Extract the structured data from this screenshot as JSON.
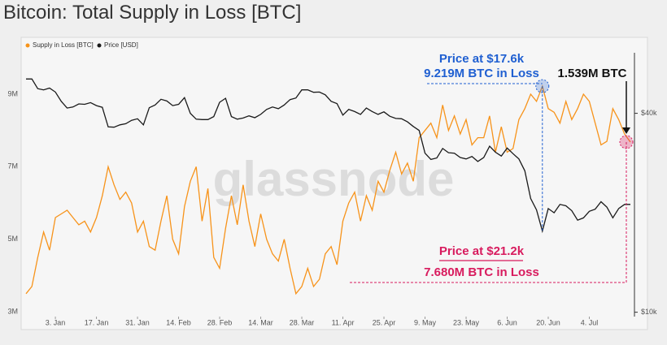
{
  "chart_data": {
    "type": "line",
    "title": "Bitcoin: Total Supply in Loss [BTC]",
    "watermark": "glassnode",
    "legend": "top-left",
    "categories": [
      null,
      null,
      null,
      null,
      null,
      "3. Jan",
      null,
      null,
      null,
      null,
      null,
      null,
      "17. Jan",
      null,
      null,
      null,
      null,
      null,
      null,
      "31. Jan",
      null,
      null,
      null,
      null,
      null,
      null,
      "14. Feb",
      null,
      null,
      null,
      null,
      null,
      null,
      "28. Feb",
      null,
      null,
      null,
      null,
      null,
      null,
      "14. Mar",
      null,
      null,
      null,
      null,
      null,
      null,
      "28. Mar",
      null,
      null,
      null,
      null,
      null,
      null,
      "11. Apr",
      null,
      null,
      null,
      null,
      null,
      null,
      "25. Apr",
      null,
      null,
      null,
      null,
      null,
      null,
      "9. May",
      null,
      null,
      null,
      null,
      null,
      null,
      "23. May",
      null,
      null,
      null,
      null,
      null,
      null,
      "6. Jun",
      null,
      null,
      null,
      null,
      null,
      null,
      "20. Jun",
      null,
      null,
      null,
      null,
      null,
      null,
      "4. Jul",
      null,
      null,
      null,
      null,
      null,
      null,
      null
    ],
    "series": [
      {
        "name": "Supply in Loss [BTC]",
        "color": "#f7931a",
        "axis": "y",
        "values": [
          3.5,
          3.7,
          4.5,
          5.2,
          4.7,
          5.6,
          5.7,
          5.8,
          5.6,
          5.4,
          5.5,
          5.2,
          5.6,
          6.2,
          7.0,
          6.5,
          6.1,
          6.3,
          6.0,
          5.2,
          5.5,
          4.8,
          4.7,
          5.5,
          6.2,
          5.0,
          4.6,
          5.9,
          6.6,
          7.0,
          5.5,
          6.4,
          4.5,
          4.2,
          5.3,
          6.2,
          5.4,
          6.5,
          5.5,
          4.8,
          5.7,
          5.0,
          4.6,
          4.4,
          5.0,
          4.2,
          3.5,
          3.7,
          4.2,
          3.7,
          3.9,
          4.6,
          4.8,
          4.3,
          5.5,
          6.0,
          6.3,
          5.5,
          6.2,
          5.8,
          6.6,
          6.3,
          6.9,
          7.4,
          6.8,
          7.1,
          6.6,
          7.8,
          8.0,
          8.2,
          7.8,
          8.7,
          8.0,
          8.4,
          7.9,
          8.3,
          7.6,
          7.8,
          7.8,
          8.4,
          7.4,
          8.1,
          7.4,
          7.5,
          8.3,
          8.6,
          9.0,
          8.8,
          9.219,
          8.6,
          8.5,
          8.2,
          8.8,
          8.3,
          8.6,
          9.0,
          8.8,
          8.2,
          7.6,
          7.7,
          8.6,
          8.3,
          7.9,
          7.68
        ]
      },
      {
        "name": "Price [USD]",
        "color": "#1a1a1a",
        "axis": "y2",
        "values": [
          50800,
          50800,
          47500,
          47100,
          47700,
          46400,
          43500,
          41500,
          41800,
          42700,
          42600,
          43100,
          42200,
          41700,
          36400,
          36300,
          36900,
          37200,
          38100,
          38500,
          36900,
          41600,
          42400,
          44100,
          43600,
          42200,
          42600,
          44600,
          40000,
          38400,
          38300,
          38300,
          39100,
          43200,
          44400,
          39100,
          38400,
          38700,
          39300,
          38800,
          39700,
          41100,
          41800,
          41300,
          42400,
          44000,
          44500,
          47100,
          47100,
          46300,
          46400,
          45500,
          43500,
          42800,
          39500,
          41100,
          40500,
          39700,
          41500,
          40500,
          39700,
          40400,
          39200,
          38600,
          38500,
          37700,
          36500,
          35500,
          30300,
          29000,
          29300,
          31300,
          30400,
          30300,
          29400,
          29100,
          29600,
          28600,
          29400,
          31800,
          30500,
          29700,
          31400,
          30200,
          29100,
          26800,
          22100,
          20400,
          17600,
          20600,
          20000,
          21200,
          21000,
          20300,
          19000,
          19300,
          20200,
          20500,
          21600,
          20800,
          19300,
          20600,
          21200,
          21200
        ]
      }
    ],
    "ylim": [
      2.87,
      10.14
    ],
    "yticks": [
      {
        "value": 3,
        "label": "3M"
      },
      {
        "value": 5,
        "label": "5M"
      },
      {
        "value": 7,
        "label": "7M"
      },
      {
        "value": 9,
        "label": "9M"
      }
    ],
    "y2lim": [
      9700,
      61000
    ],
    "y2scale": "log",
    "y2ticks": [
      {
        "value": 10000,
        "label": "$10k"
      },
      {
        "value": 40000,
        "label": "$40k"
      }
    ],
    "annotations": [
      {
        "text": "Price at $17.6k",
        "color": "#1f5fd1"
      },
      {
        "text": "9.219M BTC in Loss",
        "color": "#1f5fd1"
      },
      {
        "text": "1.539M BTC",
        "color": "#111111"
      },
      {
        "text": "Price at $21.2k",
        "color": "#d81b5e"
      },
      {
        "text": "7.680M BTC in Loss",
        "color": "#d81b5e"
      }
    ]
  }
}
